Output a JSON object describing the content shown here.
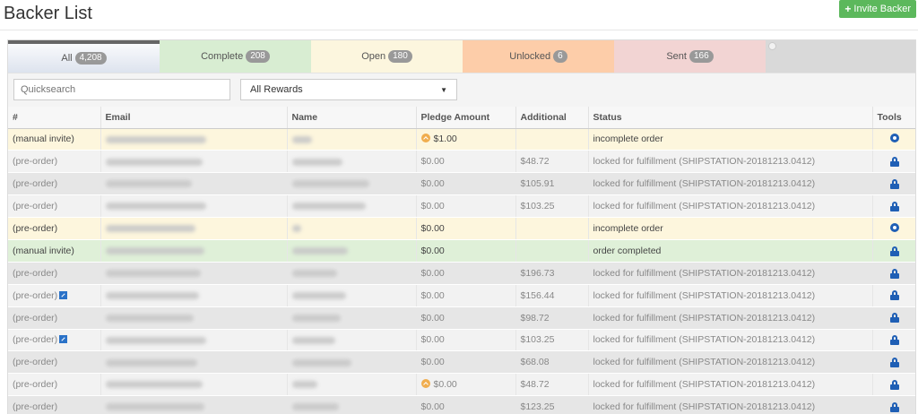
{
  "header": {
    "title": "Backer List",
    "invite_label": "Invite Backer"
  },
  "tabs": [
    {
      "label": "All",
      "count": "4,208"
    },
    {
      "label": "Complete",
      "count": "208"
    },
    {
      "label": "Open",
      "count": "180"
    },
    {
      "label": "Unlocked",
      "count": "6"
    },
    {
      "label": "Sent",
      "count": "166"
    }
  ],
  "filters": {
    "search_placeholder": "Quicksearch",
    "rewards_selected": "All Rewards"
  },
  "table": {
    "columns": [
      "#",
      "Email",
      "Name",
      "Pledge Amount",
      "Additional",
      "Status",
      "Tools"
    ],
    "rows": [
      {
        "type": "(manual invite)",
        "pledge": "$1.00",
        "additional": "",
        "status": "incomplete order",
        "tool": "gear-icon",
        "highlight": "yellow",
        "alert": true,
        "ext": false
      },
      {
        "type": "(pre-order)",
        "pledge": "$0.00",
        "additional": "$48.72",
        "status": "locked for fulfillment (SHIPSTATION-20181213.0412)",
        "tool": "lock-icon",
        "highlight": "grey",
        "alert": false,
        "ext": false
      },
      {
        "type": "(pre-order)",
        "pledge": "$0.00",
        "additional": "$105.91",
        "status": "locked for fulfillment (SHIPSTATION-20181213.0412)",
        "tool": "lock-icon",
        "highlight": "dark",
        "alert": false,
        "ext": false
      },
      {
        "type": "(pre-order)",
        "pledge": "$0.00",
        "additional": "$103.25",
        "status": "locked for fulfillment (SHIPSTATION-20181213.0412)",
        "tool": "lock-icon",
        "highlight": "grey",
        "alert": false,
        "ext": false
      },
      {
        "type": "(pre-order)",
        "pledge": "$0.00",
        "additional": "",
        "status": "incomplete order",
        "tool": "gear-icon",
        "highlight": "yellow",
        "alert": false,
        "ext": false
      },
      {
        "type": "(manual invite)",
        "pledge": "$0.00",
        "additional": "",
        "status": "order completed",
        "tool": "lock-icon",
        "highlight": "green",
        "alert": false,
        "ext": false
      },
      {
        "type": "(pre-order)",
        "pledge": "$0.00",
        "additional": "$196.73",
        "status": "locked for fulfillment (SHIPSTATION-20181213.0412)",
        "tool": "lock-icon",
        "highlight": "dark",
        "alert": false,
        "ext": false
      },
      {
        "type": "(pre-order)",
        "pledge": "$0.00",
        "additional": "$156.44",
        "status": "locked for fulfillment (SHIPSTATION-20181213.0412)",
        "tool": "lock-icon",
        "highlight": "grey",
        "alert": false,
        "ext": true
      },
      {
        "type": "(pre-order)",
        "pledge": "$0.00",
        "additional": "$98.72",
        "status": "locked for fulfillment (SHIPSTATION-20181213.0412)",
        "tool": "lock-icon",
        "highlight": "dark",
        "alert": false,
        "ext": false
      },
      {
        "type": "(pre-order)",
        "pledge": "$0.00",
        "additional": "$103.25",
        "status": "locked for fulfillment (SHIPSTATION-20181213.0412)",
        "tool": "lock-icon",
        "highlight": "grey",
        "alert": false,
        "ext": true
      },
      {
        "type": "(pre-order)",
        "pledge": "$0.00",
        "additional": "$68.08",
        "status": "locked for fulfillment (SHIPSTATION-20181213.0412)",
        "tool": "lock-icon",
        "highlight": "dark",
        "alert": false,
        "ext": false
      },
      {
        "type": "(pre-order)",
        "pledge": "$0.00",
        "additional": "$48.72",
        "status": "locked for fulfillment (SHIPSTATION-20181213.0412)",
        "tool": "lock-icon",
        "highlight": "grey",
        "alert": true,
        "ext": false
      },
      {
        "type": "(pre-order)",
        "pledge": "$0.00",
        "additional": "$123.25",
        "status": "locked for fulfillment (SHIPSTATION-20181213.0412)",
        "tool": "lock-icon",
        "highlight": "dark",
        "alert": false,
        "ext": false
      }
    ]
  }
}
